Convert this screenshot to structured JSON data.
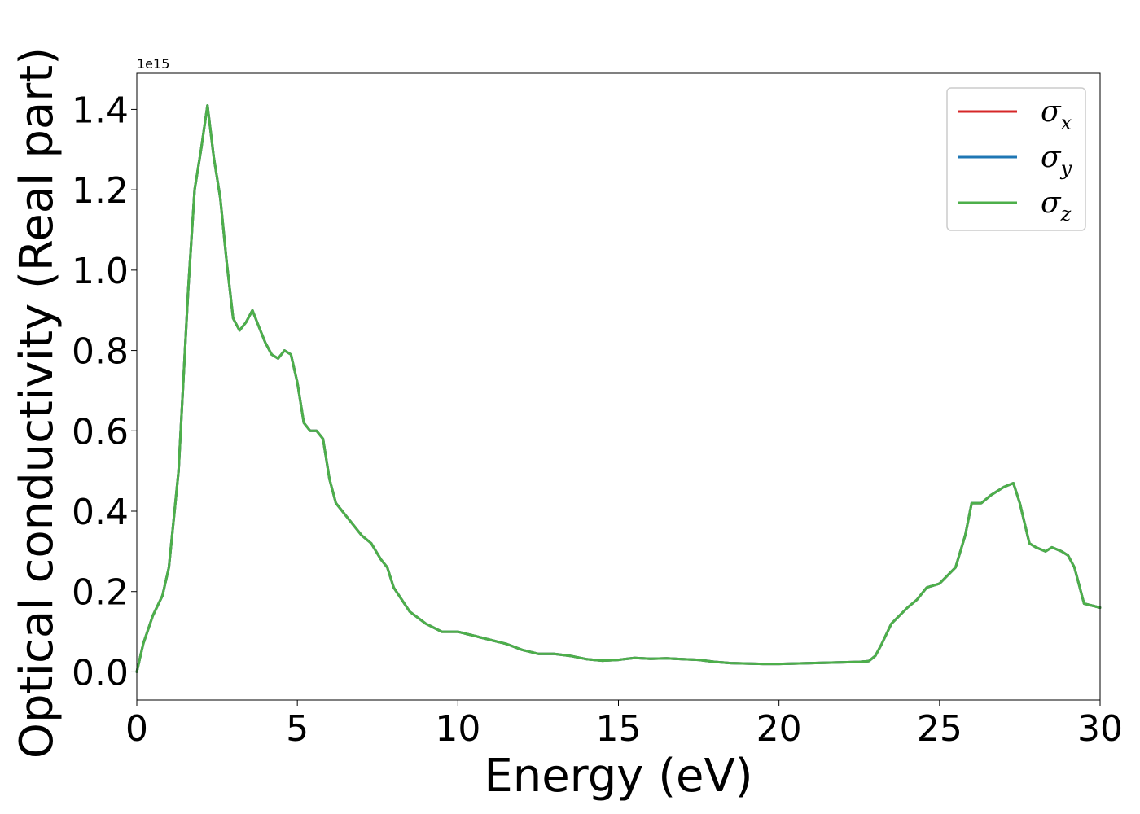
{
  "chart_data": {
    "type": "line",
    "title": "",
    "xlabel": "Energy (eV)",
    "ylabel": "Optical conductivity (Real part)",
    "y_offset_text": "1e15",
    "xlim": [
      0,
      30
    ],
    "ylim": [
      -0.07,
      1.49
    ],
    "y_scale_factor": 1000000000000000.0,
    "x_ticks": [
      0,
      5,
      10,
      15,
      20,
      25,
      30
    ],
    "x_tick_labels": [
      "0",
      "5",
      "10",
      "15",
      "20",
      "25",
      "30"
    ],
    "y_ticks": [
      0.0,
      0.2,
      0.4,
      0.6,
      0.8,
      1.0,
      1.2,
      1.4
    ],
    "y_tick_labels": [
      "0.0",
      "0.2",
      "0.4",
      "0.6",
      "0.8",
      "1.0",
      "1.2",
      "1.4"
    ],
    "grid": false,
    "legend_position": "top-right",
    "legend": [
      {
        "symbol": "σ",
        "sub": "x",
        "color": "#d62728"
      },
      {
        "symbol": "σ",
        "sub": "y",
        "color": "#1f77b4"
      },
      {
        "symbol": "σ",
        "sub": "z",
        "color": "#4daf4a"
      }
    ],
    "x": [
      0,
      0.2,
      0.5,
      0.8,
      1.0,
      1.3,
      1.6,
      1.8,
      2.0,
      2.2,
      2.4,
      2.6,
      2.8,
      3.0,
      3.2,
      3.4,
      3.6,
      3.8,
      4.0,
      4.2,
      4.4,
      4.6,
      4.8,
      5.0,
      5.2,
      5.4,
      5.6,
      5.8,
      6.0,
      6.2,
      6.5,
      7.0,
      7.3,
      7.6,
      7.8,
      8.0,
      8.5,
      9.0,
      9.5,
      10.0,
      10.5,
      11.0,
      11.5,
      12.0,
      12.5,
      13.0,
      13.5,
      14.0,
      14.5,
      15.0,
      15.5,
      16.0,
      16.5,
      17.0,
      17.5,
      18.0,
      18.5,
      19.0,
      19.5,
      20.0,
      20.5,
      21.0,
      21.5,
      22.0,
      22.5,
      22.8,
      23.0,
      23.2,
      23.5,
      24.0,
      24.3,
      24.6,
      25.0,
      25.5,
      25.8,
      26.0,
      26.3,
      26.6,
      27.0,
      27.3,
      27.5,
      27.8,
      28.0,
      28.3,
      28.5,
      28.8,
      29.0,
      29.2,
      29.5,
      30.0
    ],
    "series": [
      {
        "name": "σx",
        "color": "#d62728",
        "values": [
          0.0,
          0.07,
          0.14,
          0.19,
          0.26,
          0.5,
          0.95,
          1.2,
          1.3,
          1.41,
          1.28,
          1.18,
          1.02,
          0.88,
          0.85,
          0.87,
          0.9,
          0.86,
          0.82,
          0.79,
          0.78,
          0.8,
          0.79,
          0.72,
          0.62,
          0.6,
          0.6,
          0.58,
          0.48,
          0.42,
          0.39,
          0.34,
          0.32,
          0.28,
          0.26,
          0.21,
          0.15,
          0.12,
          0.1,
          0.1,
          0.09,
          0.08,
          0.07,
          0.055,
          0.045,
          0.045,
          0.04,
          0.032,
          0.028,
          0.03,
          0.035,
          0.033,
          0.034,
          0.032,
          0.03,
          0.025,
          0.022,
          0.021,
          0.02,
          0.02,
          0.021,
          0.022,
          0.023,
          0.024,
          0.025,
          0.027,
          0.04,
          0.07,
          0.12,
          0.16,
          0.18,
          0.21,
          0.22,
          0.26,
          0.34,
          0.42,
          0.42,
          0.44,
          0.46,
          0.47,
          0.42,
          0.32,
          0.31,
          0.3,
          0.31,
          0.3,
          0.29,
          0.26,
          0.17,
          0.16
        ]
      },
      {
        "name": "σy",
        "color": "#1f77b4",
        "values": [
          0.0,
          0.07,
          0.14,
          0.19,
          0.26,
          0.5,
          0.95,
          1.2,
          1.3,
          1.41,
          1.28,
          1.18,
          1.02,
          0.88,
          0.85,
          0.87,
          0.9,
          0.86,
          0.82,
          0.79,
          0.78,
          0.8,
          0.79,
          0.72,
          0.62,
          0.6,
          0.6,
          0.58,
          0.48,
          0.42,
          0.39,
          0.34,
          0.32,
          0.28,
          0.26,
          0.21,
          0.15,
          0.12,
          0.1,
          0.1,
          0.09,
          0.08,
          0.07,
          0.055,
          0.045,
          0.045,
          0.04,
          0.032,
          0.028,
          0.03,
          0.035,
          0.033,
          0.034,
          0.032,
          0.03,
          0.025,
          0.022,
          0.021,
          0.02,
          0.02,
          0.021,
          0.022,
          0.023,
          0.024,
          0.025,
          0.027,
          0.04,
          0.07,
          0.12,
          0.16,
          0.18,
          0.21,
          0.22,
          0.26,
          0.34,
          0.42,
          0.42,
          0.44,
          0.46,
          0.47,
          0.42,
          0.32,
          0.31,
          0.3,
          0.31,
          0.3,
          0.29,
          0.26,
          0.17,
          0.16
        ]
      },
      {
        "name": "σz",
        "color": "#4daf4a",
        "values": [
          0.0,
          0.07,
          0.14,
          0.19,
          0.26,
          0.5,
          0.95,
          1.2,
          1.3,
          1.41,
          1.28,
          1.18,
          1.02,
          0.88,
          0.85,
          0.87,
          0.9,
          0.86,
          0.82,
          0.79,
          0.78,
          0.8,
          0.79,
          0.72,
          0.62,
          0.6,
          0.6,
          0.58,
          0.48,
          0.42,
          0.39,
          0.34,
          0.32,
          0.28,
          0.26,
          0.21,
          0.15,
          0.12,
          0.1,
          0.1,
          0.09,
          0.08,
          0.07,
          0.055,
          0.045,
          0.045,
          0.04,
          0.032,
          0.028,
          0.03,
          0.035,
          0.033,
          0.034,
          0.032,
          0.03,
          0.025,
          0.022,
          0.021,
          0.02,
          0.02,
          0.021,
          0.022,
          0.023,
          0.024,
          0.025,
          0.027,
          0.04,
          0.07,
          0.12,
          0.16,
          0.18,
          0.21,
          0.22,
          0.26,
          0.34,
          0.42,
          0.42,
          0.44,
          0.46,
          0.47,
          0.42,
          0.32,
          0.31,
          0.3,
          0.31,
          0.3,
          0.29,
          0.26,
          0.17,
          0.16
        ]
      }
    ]
  }
}
